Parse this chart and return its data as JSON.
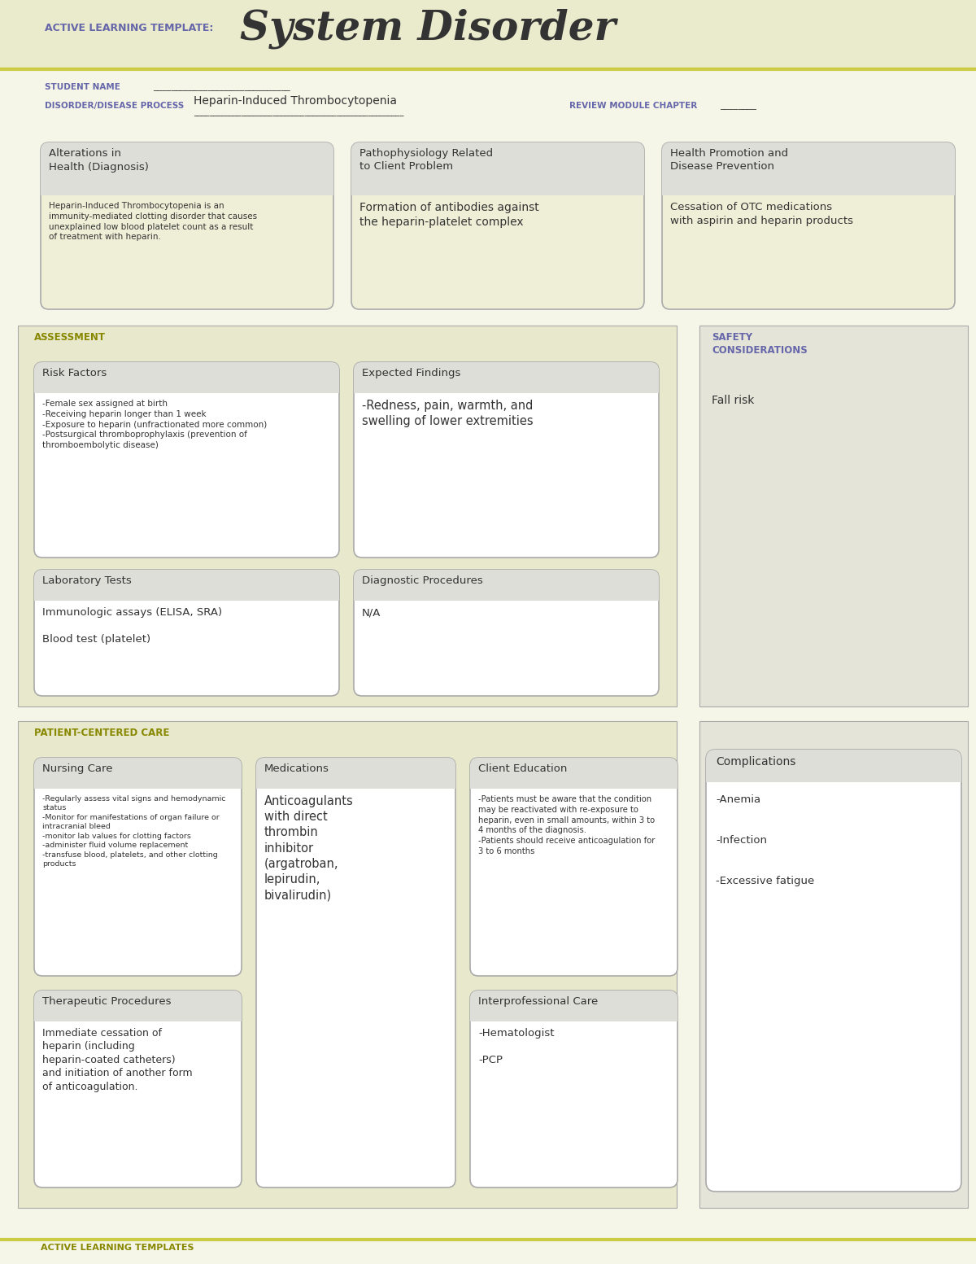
{
  "title": "System Disorder",
  "subtitle": "ACTIVE LEARNING TEMPLATE:",
  "bg_main": "#f5f5e8",
  "bg_header": "#eaeacc",
  "bg_section": "#e8e8cc",
  "bg_safety": "#e8e8e0",
  "bg_white": "#ffffff",
  "bg_box_title": "#deded8",
  "bg_box": "#efefd8",
  "border_box": "#aaaaaa",
  "color_purple": "#6666aa",
  "color_olive": "#888800",
  "color_dark": "#333333",
  "color_line": "#cccc44",
  "student_name_label": "STUDENT NAME",
  "disorder_label": "DISORDER/DISEASE PROCESS",
  "disorder_value": "Heparin-Induced Thrombocytopenia",
  "review_label": "REVIEW MODULE CHAPTER",
  "sec1_title": "Alterations in\nHealth (Diagnosis)",
  "sec1_body": "Heparin-Induced Thrombocytopenia is an\nimmunity-mediated clotting disorder that causes\nunexplained low blood platelet count as a result\nof treatment with heparin.",
  "sec2_title": "Pathophysiology Related\nto Client Problem",
  "sec2_body": "Formation of antibodies against\nthe heparin-platelet complex",
  "sec3_title": "Health Promotion and\nDisease Prevention",
  "sec3_body": "Cessation of OTC medications\nwith aspirin and heparin products",
  "assess_label": "ASSESSMENT",
  "safety_label": "SAFETY\nCONSIDERATIONS",
  "safety_body": "Fall risk",
  "risk_title": "Risk Factors",
  "risk_body": "-Female sex assigned at birth\n-Receiving heparin longer than 1 week\n-Exposure to heparin (unfractionated more common)\n-Postsurgical thromboprophylaxis (prevention of\nthromboembolytic disease)",
  "expected_title": "Expected Findings",
  "expected_body": "-Redness, pain, warmth, and\nswelling of lower extremities",
  "lab_title": "Laboratory Tests",
  "lab_body": "Immunologic assays (ELISA, SRA)\n\nBlood test (platelet)",
  "diag_title": "Diagnostic Procedures",
  "diag_body": "N/A",
  "pcc_label": "PATIENT-CENTERED CARE",
  "nursing_title": "Nursing Care",
  "nursing_body": "-Regularly assess vital signs and hemodynamic\nstatus\n-Monitor for manifestations of organ failure or\nintracranial bleed\n-monitor lab values for clotting factors\n-administer fluid volume replacement\n-transfuse blood, platelets, and other clotting\nproducts",
  "meds_title": "Medications",
  "meds_body": "Anticoagulants\nwith direct\nthrombin\ninhibitor\n(argatroban,\nlepirudin,\nbivalirudin)",
  "client_title": "Client Education",
  "client_body": "-Patients must be aware that the condition\nmay be reactivated with re-exposure to\nheparin, even in small amounts, within 3 to\n4 months of the diagnosis.\n-Patients should receive anticoagulation for\n3 to 6 months",
  "comp_label": "Complications",
  "comp_body": "-Anemia\n\n-Infection\n\n-Excessive fatigue",
  "thera_title": "Therapeutic Procedures",
  "thera_body": "Immediate cessation of\nheparin (including\nheparin-coated catheters)\nand initiation of another form\nof anticoagulation.",
  "inter_title": "Interprofessional Care",
  "inter_body": "-Hematologist\n\n-PCP",
  "footer": "ACTIVE LEARNING TEMPLATES"
}
